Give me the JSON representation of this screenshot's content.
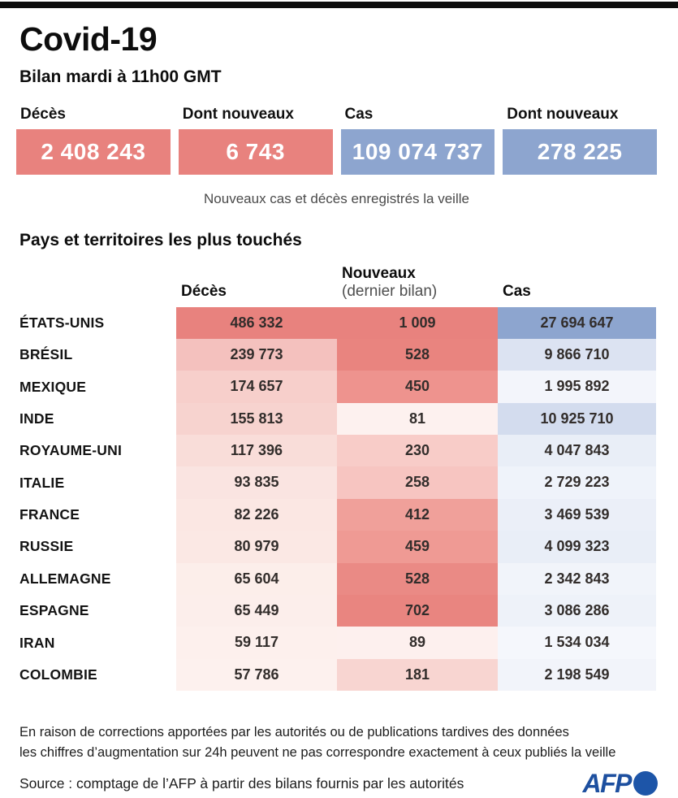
{
  "page": {
    "title": "Covid-19",
    "subtitle": "Bilan mardi à 11h00 GMT"
  },
  "summary": {
    "caption": "Nouveaux cas et décès enregistrés la veille",
    "stats": [
      {
        "label": "Décès",
        "value": "2 408 243",
        "color": "#e8827e"
      },
      {
        "label": "Dont nouveaux",
        "value": "6 743",
        "color": "#e8827e"
      },
      {
        "label": "Cas",
        "value": "109 074 737",
        "color": "#8da5cf"
      },
      {
        "label": "Dont nouveaux",
        "value": "278 225",
        "color": "#8da5cf"
      }
    ]
  },
  "table": {
    "title": "Pays et territoires les plus touchés",
    "columns": {
      "deaths": "Décès",
      "new_line1": "Nouveaux",
      "new_line2": "(dernier bilan)",
      "cases": "Cas"
    },
    "rows": [
      {
        "country": "ÉTATS-UNIS",
        "deaths": "486 332",
        "new": "1 009",
        "cases": "27 694 647",
        "deaths_bg": "#e8827e",
        "new_bg": "#e8827e",
        "cases_bg": "#8da5cf"
      },
      {
        "country": "BRÉSIL",
        "deaths": "239 773",
        "new": "528",
        "cases": "9 866 710",
        "deaths_bg": "#f4c1be",
        "new_bg": "#e9847f",
        "cases_bg": "#dce3f2"
      },
      {
        "country": "MEXIQUE",
        "deaths": "174 657",
        "new": "450",
        "cases": "1 995 892",
        "deaths_bg": "#f7cfcb",
        "new_bg": "#ee938e",
        "cases_bg": "#f3f5fb"
      },
      {
        "country": "INDE",
        "deaths": "155 813",
        "new": "81",
        "cases": "10 925 710",
        "deaths_bg": "#f7d3cf",
        "new_bg": "#fdf1ef",
        "cases_bg": "#d3dcee"
      },
      {
        "country": "ROYAUME-UNI",
        "deaths": "117 396",
        "new": "230",
        "cases": "4 047 843",
        "deaths_bg": "#f9ddd9",
        "new_bg": "#f8ccc8",
        "cases_bg": "#e9eef7"
      },
      {
        "country": "ITALIE",
        "deaths": "93 835",
        "new": "258",
        "cases": "2 729 223",
        "deaths_bg": "#fae4e1",
        "new_bg": "#f7c5c1",
        "cases_bg": "#eff3fa"
      },
      {
        "country": "FRANCE",
        "deaths": "82 226",
        "new": "412",
        "cases": "3 469 539",
        "deaths_bg": "#fbe7e3",
        "new_bg": "#f0a09a",
        "cases_bg": "#ebeff8"
      },
      {
        "country": "RUSSIE",
        "deaths": "80 979",
        "new": "459",
        "cases": "4 099 323",
        "deaths_bg": "#fbe8e4",
        "new_bg": "#ef9a94",
        "cases_bg": "#e9eef7"
      },
      {
        "country": "ALLEMAGNE",
        "deaths": "65 604",
        "new": "528",
        "cases": "2 342 843",
        "deaths_bg": "#fceeea",
        "new_bg": "#ea8a85",
        "cases_bg": "#f1f4fa"
      },
      {
        "country": "ESPAGNE",
        "deaths": "65 449",
        "new": "702",
        "cases": "3 086 286",
        "deaths_bg": "#fceeeb",
        "new_bg": "#e98580",
        "cases_bg": "#eef2f9"
      },
      {
        "country": "IRAN",
        "deaths": "59 117",
        "new": "89",
        "cases": "1 534 034",
        "deaths_bg": "#fdf0ed",
        "new_bg": "#fdf0ee",
        "cases_bg": "#f5f7fc"
      },
      {
        "country": "COLOMBIE",
        "deaths": "57 786",
        "new": "181",
        "cases": "2 198 549",
        "deaths_bg": "#fdf1ee",
        "new_bg": "#f8d5d1",
        "cases_bg": "#f2f4fa"
      }
    ]
  },
  "footer": {
    "note1": "En raison de corrections apportées par les autorités ou de publications tardives des données",
    "note2": "les chiffres d’augmentation sur 24h peuvent ne pas correspondre exactement à ceux publiés la veille",
    "source": "Source : comptage de l’AFP à partir des bilans fournis par les autorités",
    "logo_text": "AFP",
    "logo_text_color": "#1d4f9f",
    "logo_dot_color": "#1d55a8"
  },
  "chart_data": {
    "type": "table",
    "title": "Covid-19 — Bilan mardi à 11h00 GMT",
    "totals": {
      "deces": 2408243,
      "dont_nouveaux_deces": 6743,
      "cas": 109074737,
      "dont_nouveaux_cas": 278225
    },
    "columns": [
      "Décès",
      "Nouveaux (dernier bilan)",
      "Cas"
    ],
    "rows": [
      {
        "pays": "États-Unis",
        "deces": 486332,
        "nouveaux": 1009,
        "cas": 27694647
      },
      {
        "pays": "Brésil",
        "deces": 239773,
        "nouveaux": 528,
        "cas": 9866710
      },
      {
        "pays": "Mexique",
        "deces": 174657,
        "nouveaux": 450,
        "cas": 1995892
      },
      {
        "pays": "Inde",
        "deces": 155813,
        "nouveaux": 81,
        "cas": 10925710
      },
      {
        "pays": "Royaume-Uni",
        "deces": 117396,
        "nouveaux": 230,
        "cas": 4047843
      },
      {
        "pays": "Italie",
        "deces": 93835,
        "nouveaux": 258,
        "cas": 2729223
      },
      {
        "pays": "France",
        "deces": 82226,
        "nouveaux": 412,
        "cas": 3469539
      },
      {
        "pays": "Russie",
        "deces": 80979,
        "nouveaux": 459,
        "cas": 4099323
      },
      {
        "pays": "Allemagne",
        "deces": 65604,
        "nouveaux": 528,
        "cas": 2342843
      },
      {
        "pays": "Espagne",
        "deces": 65449,
        "nouveaux": 702,
        "cas": 3086286
      },
      {
        "pays": "Iran",
        "deces": 59117,
        "nouveaux": 89,
        "cas": 1534034
      },
      {
        "pays": "Colombie",
        "deces": 57786,
        "nouveaux": 181,
        "cas": 2198549
      }
    ],
    "heatmap": {
      "deaths_accent": "#e8827e",
      "cases_accent": "#8da5cf",
      "scale": "white-to-accent, proportional to value per column"
    },
    "layout": {
      "legend": false,
      "grid": false
    }
  }
}
